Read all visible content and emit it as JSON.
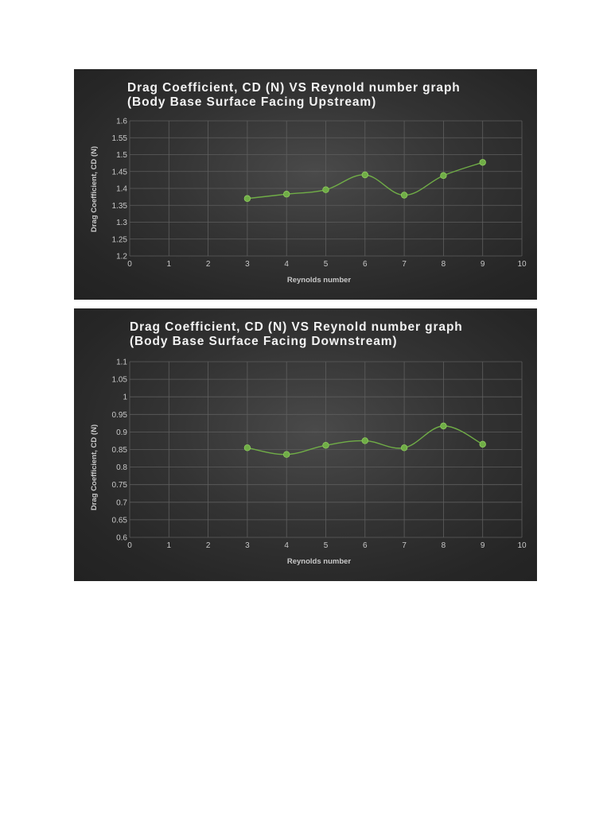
{
  "chart_data": [
    {
      "type": "scatter",
      "title_lines": [
        "Drag Coefficient, CD (N) VS Reynold number graph",
        "(Body Base Surface Facing Upstream)"
      ],
      "xlabel": "Reynolds number",
      "ylabel": "Drag Coefficient, CD (N)",
      "xlim": [
        0,
        10
      ],
      "ylim": [
        1.2,
        1.6
      ],
      "xticks": [
        "0",
        "1",
        "2",
        "3",
        "4",
        "5",
        "6",
        "7",
        "8",
        "9",
        "10"
      ],
      "yticks": [
        "1.2",
        "1.25",
        "1.3",
        "1.35",
        "1.4",
        "1.45",
        "1.5",
        "1.55",
        "1.6"
      ],
      "grid": true,
      "smooth": true,
      "colors": {
        "series": "#70ad47"
      },
      "series": [
        {
          "x": [
            3,
            4,
            5,
            6,
            7,
            8,
            9
          ],
          "y": [
            1.37,
            1.383,
            1.396,
            1.44,
            1.38,
            1.438,
            1.477
          ]
        }
      ]
    },
    {
      "type": "scatter",
      "title_lines": [
        "Drag Coefficient, CD (N) VS Reynold number graph",
        "(Body Base Surface Facing Downstream)"
      ],
      "xlabel": "Reynolds number",
      "ylabel": "Drag Coefficient, CD (N)",
      "xlim": [
        0,
        10
      ],
      "ylim": [
        0.6,
        1.1
      ],
      "xticks": [
        "0",
        "1",
        "2",
        "3",
        "4",
        "5",
        "6",
        "7",
        "8",
        "9",
        "10"
      ],
      "yticks": [
        "0.6",
        "0.65",
        "0.7",
        "0.75",
        "0.8",
        "0.85",
        "0.9",
        "0.95",
        "1",
        "1.05",
        "1.1"
      ],
      "grid": true,
      "smooth": true,
      "colors": {
        "series": "#70ad47"
      },
      "series": [
        {
          "x": [
            3,
            4,
            5,
            6,
            7,
            8,
            9
          ],
          "y": [
            0.855,
            0.836,
            0.862,
            0.875,
            0.855,
            0.917,
            0.865
          ]
        }
      ]
    }
  ]
}
